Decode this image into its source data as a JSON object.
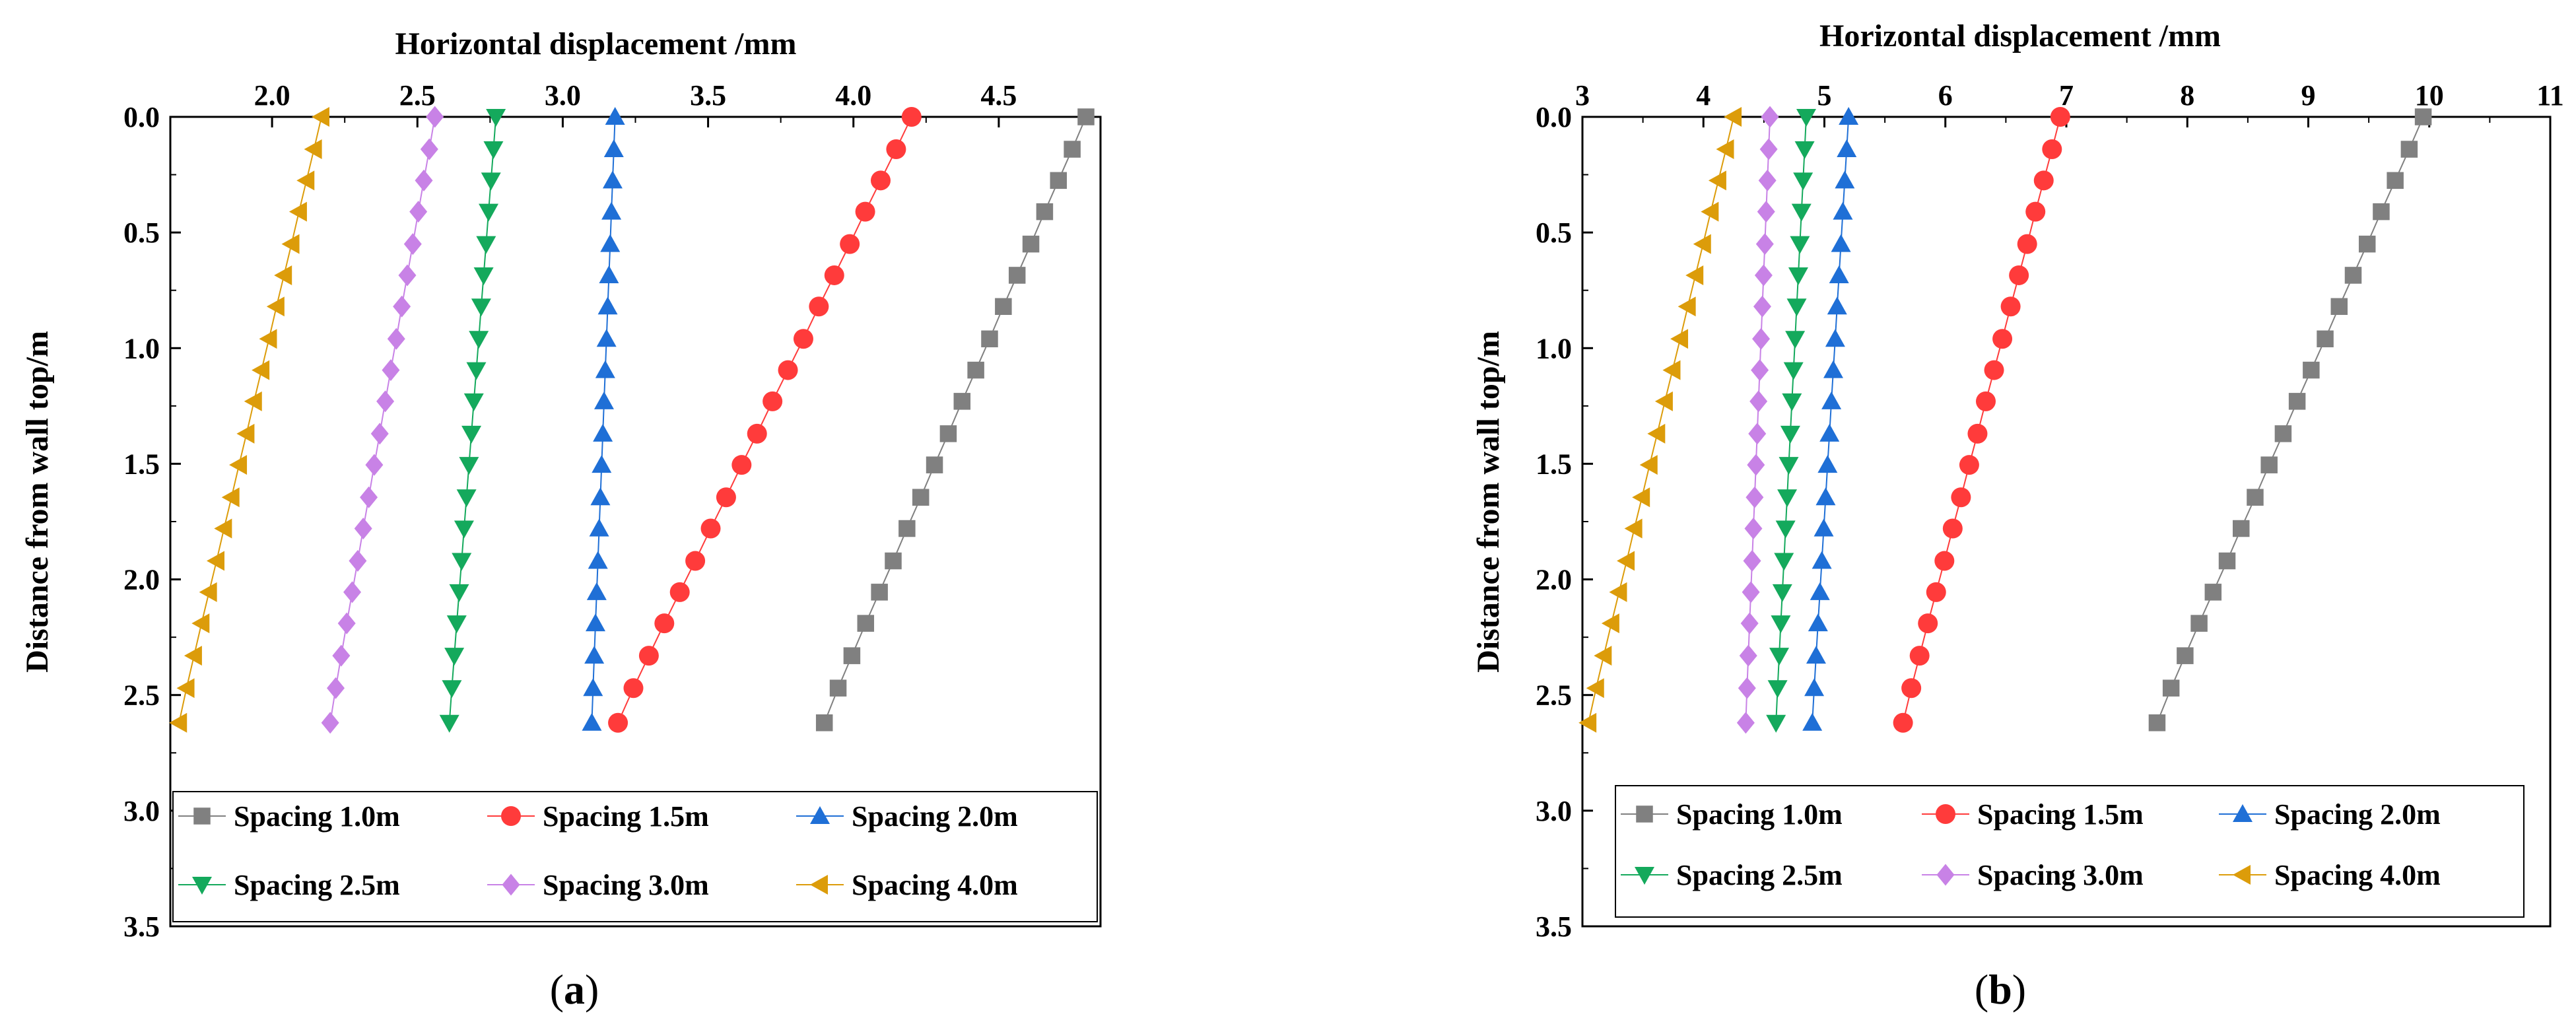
{
  "chart_data": [
    {
      "type": "scatter",
      "caption": "a",
      "title": "",
      "xlabel": "Horizontal displacement /mm",
      "ylabel": "Distance from wall top/m",
      "xlim": [
        1.65,
        4.85
      ],
      "ylim": [
        0,
        3.5
      ],
      "y_inverted": true,
      "x_ticks": [
        "2.0",
        "2.5",
        "3.0",
        "3.5",
        "4.0",
        "4.5"
      ],
      "x_tick_values": [
        2.0,
        2.5,
        3.0,
        3.5,
        4.0,
        4.5
      ],
      "y_ticks": [
        "0.0",
        "0.5",
        "1.0",
        "1.5",
        "2.0",
        "2.5",
        "3.0",
        "3.5"
      ],
      "y_tick_values": [
        0.0,
        0.5,
        1.0,
        1.5,
        2.0,
        2.5,
        3.0,
        3.5
      ],
      "legend_position": "bottom",
      "depths": [
        0.0,
        0.14,
        0.275,
        0.41,
        0.55,
        0.685,
        0.82,
        0.96,
        1.095,
        1.23,
        1.37,
        1.505,
        1.645,
        1.78,
        1.92,
        2.055,
        2.19,
        2.33,
        2.47,
        2.62
      ],
      "series": [
        {
          "name": "Spacing 1.0m",
          "label": "Spacing 1.0m",
          "marker": "square",
          "color": "#808080",
          "x_top": 4.8,
          "x_bottom": 3.9
        },
        {
          "name": "Spacing 1.5m",
          "label": "Spacing 1.5m",
          "marker": "circle",
          "color": "#ff3b3b",
          "x_top": 4.2,
          "x_bottom": 3.19
        },
        {
          "name": "Spacing 2.0m",
          "label": "Spacing 2.0m",
          "marker": "triangle-up",
          "color": "#1f6fd6",
          "x_top": 3.18,
          "x_bottom": 3.1
        },
        {
          "name": "Spacing 2.5m",
          "label": "Spacing 2.5m",
          "marker": "triangle-down",
          "color": "#14a95c",
          "x_top": 2.77,
          "x_bottom": 2.61
        },
        {
          "name": "Spacing 3.0m",
          "label": "Spacing 3.0m",
          "marker": "diamond",
          "color": "#c882e6",
          "x_top": 2.56,
          "x_bottom": 2.2
        },
        {
          "name": "Spacing 4.0m",
          "label": "Spacing 4.0m",
          "marker": "triangle-left",
          "color": "#dc9c0a",
          "x_top": 2.17,
          "x_bottom": 1.68
        }
      ]
    },
    {
      "type": "scatter",
      "caption": "b",
      "title": "",
      "xlabel": "Horizontal displacement /mm",
      "ylabel": "Distance from wall top/m",
      "xlim": [
        3,
        11
      ],
      "ylim": [
        0,
        3.5
      ],
      "y_inverted": true,
      "x_ticks": [
        "3",
        "4",
        "5",
        "6",
        "7",
        "8",
        "9",
        "10",
        "11"
      ],
      "x_tick_values": [
        3,
        4,
        5,
        6,
        7,
        8,
        9,
        10,
        11
      ],
      "y_ticks": [
        "0.0",
        "0.5",
        "1.0",
        "1.5",
        "2.0",
        "2.5",
        "3.0",
        "3.5"
      ],
      "y_tick_values": [
        0.0,
        0.5,
        1.0,
        1.5,
        2.0,
        2.5,
        3.0,
        3.5
      ],
      "legend_position": "bottom",
      "depths": [
        0.0,
        0.14,
        0.275,
        0.41,
        0.55,
        0.685,
        0.82,
        0.96,
        1.095,
        1.23,
        1.37,
        1.505,
        1.645,
        1.78,
        1.92,
        2.055,
        2.19,
        2.33,
        2.47,
        2.62
      ],
      "series": [
        {
          "name": "Spacing 1.0m",
          "label": "Spacing 1.0m",
          "marker": "square",
          "color": "#808080",
          "x_top": 9.95,
          "x_bottom": 7.75
        },
        {
          "name": "Spacing 1.5m",
          "label": "Spacing 1.5m",
          "marker": "circle",
          "color": "#ff3b3b",
          "x_top": 6.95,
          "x_bottom": 5.65
        },
        {
          "name": "Spacing 2.0m",
          "label": "Spacing 2.0m",
          "marker": "triangle-up",
          "color": "#1f6fd6",
          "x_top": 5.2,
          "x_bottom": 4.9
        },
        {
          "name": "Spacing 2.5m",
          "label": "Spacing 2.5m",
          "marker": "triangle-down",
          "color": "#14a95c",
          "x_top": 4.85,
          "x_bottom": 4.6
        },
        {
          "name": "Spacing 3.0m",
          "label": "Spacing 3.0m",
          "marker": "diamond",
          "color": "#c882e6",
          "x_top": 4.55,
          "x_bottom": 4.35
        },
        {
          "name": "Spacing 4.0m",
          "label": "Spacing 4.0m",
          "marker": "triangle-left",
          "color": "#dc9c0a",
          "x_top": 4.25,
          "x_bottom": 3.05
        }
      ]
    }
  ]
}
